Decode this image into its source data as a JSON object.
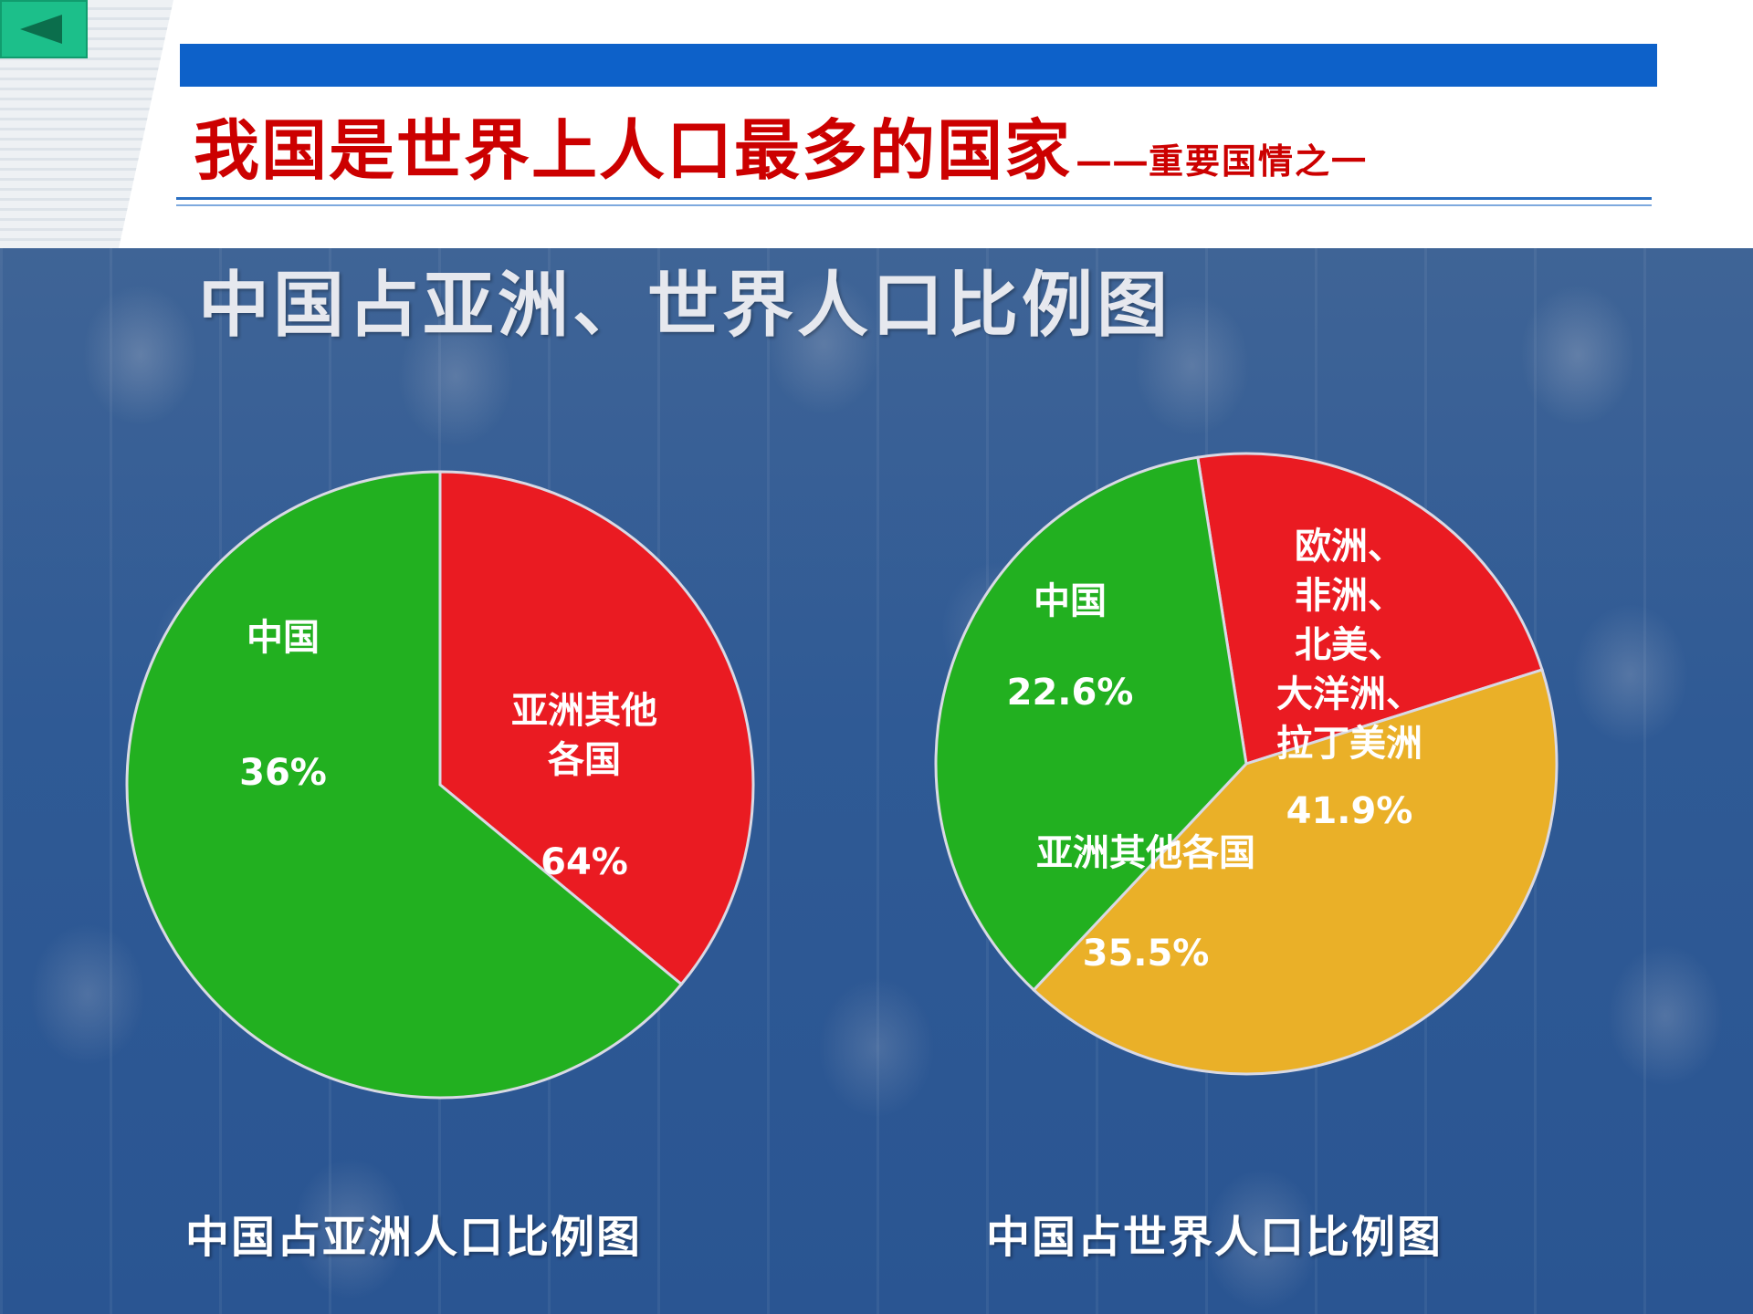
{
  "header": {
    "title_main": "我国是世界上人口最多的国家",
    "title_dash": "——",
    "title_sub": "重要国情之一"
  },
  "charts_title": "中国占亚洲、世界人口比例图",
  "chart_data": [
    {
      "type": "pie",
      "title": "中国占亚洲人口比例图",
      "slices": [
        {
          "label_lines": [
            "中国"
          ],
          "value_text": "36%",
          "value": 36,
          "color": "#ea1b22"
        },
        {
          "label_lines": [
            "亚洲其他",
            "各国"
          ],
          "value_text": "64%",
          "value": 64,
          "color": "#22b020"
        }
      ]
    },
    {
      "type": "pie",
      "title": "中国占世界人口比例图",
      "slices": [
        {
          "label_lines": [
            "中国"
          ],
          "value_text": "22.6%",
          "value": 22.6,
          "color": "#ea1b22"
        },
        {
          "label_lines": [
            "欧洲、",
            "非洲、",
            "北美、",
            "大洋洲、",
            "拉丁美洲"
          ],
          "value_text": "41.9%",
          "value": 41.9,
          "color": "#eab028"
        },
        {
          "label_lines": [
            "亚洲其他各国"
          ],
          "value_text": "35.5%",
          "value": 35.5,
          "color": "#22b020"
        }
      ]
    }
  ]
}
